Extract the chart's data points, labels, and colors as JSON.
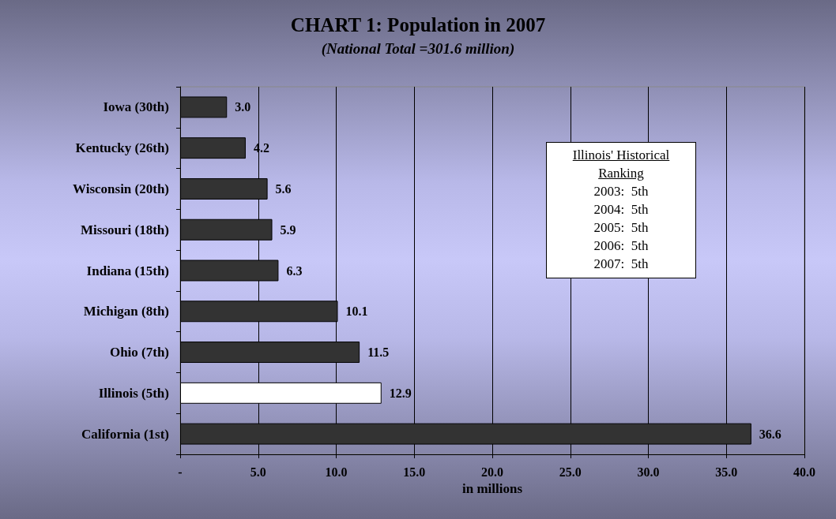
{
  "chart_data": {
    "type": "bar",
    "orientation": "horizontal",
    "title": "CHART 1: Population in 2007",
    "subtitle": "(National Total =301.6 million)",
    "xlabel": "in millions",
    "categories": [
      "Iowa (30th)",
      "Kentucky (26th)",
      "Wisconsin (20th)",
      "Missouri (18th)",
      "Indiana (15th)",
      "Michigan (8th)",
      "Ohio (7th)",
      "Illinois (5th)",
      "California (1st)"
    ],
    "values": [
      3.0,
      4.2,
      5.6,
      5.9,
      6.3,
      10.1,
      11.5,
      12.9,
      36.6
    ],
    "value_labels": [
      "3.0",
      "4.2",
      "5.6",
      "5.9",
      "6.3",
      "10.1",
      "11.5",
      "12.9",
      "36.6"
    ],
    "colors": [
      "#333333",
      "#333333",
      "#333333",
      "#333333",
      "#333333",
      "#333333",
      "#333333",
      "#ffffff",
      "#333333"
    ],
    "xlim": [
      0,
      40
    ],
    "xticks": [
      {
        "value": 0,
        "label": "-"
      },
      {
        "value": 5,
        "label": "5.0"
      },
      {
        "value": 10,
        "label": "10.0"
      },
      {
        "value": 15,
        "label": "15.0"
      },
      {
        "value": 20,
        "label": "20.0"
      },
      {
        "value": 25,
        "label": "25.0"
      },
      {
        "value": 30,
        "label": "30.0"
      },
      {
        "value": 35,
        "label": "35.0"
      },
      {
        "value": 40,
        "label": "40.0"
      }
    ],
    "grid": "x",
    "annotations": [
      "Illinois' Historical Ranking",
      "2003:  5th",
      "2004:  5th",
      "2005:  5th",
      "2006:  5th",
      "2007:  5th"
    ]
  }
}
